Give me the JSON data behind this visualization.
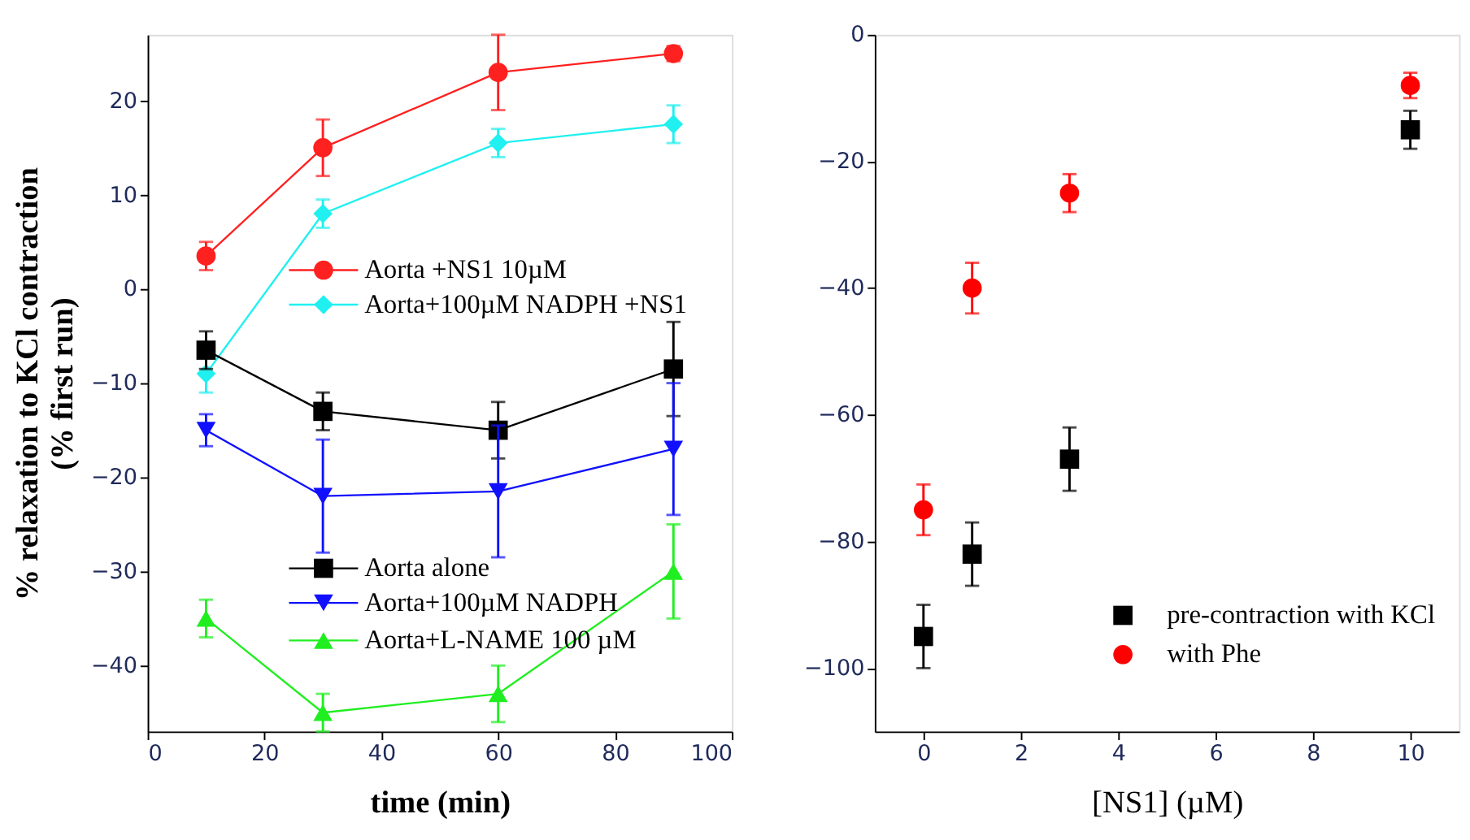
{
  "chart_data": [
    {
      "type": "line",
      "xlabel": "time (min)",
      "ylabel": "% relaxation to KCl contraction\n(% first run)",
      "xlim": [
        0,
        100
      ],
      "ylim": [
        -47,
        27
      ],
      "xticks": [
        0,
        20,
        40,
        60,
        80,
        100
      ],
      "yticks": [
        -40,
        -30,
        -20,
        -10,
        0,
        10,
        20
      ],
      "x": [
        10,
        30,
        60,
        90
      ],
      "legend": "center",
      "series": [
        {
          "name": "Aorta +NS1 10µM",
          "color": "#ff2020",
          "marker": "circle",
          "values": [
            3.5,
            15,
            23,
            25
          ],
          "errors": [
            1.5,
            3,
            4,
            0.8
          ]
        },
        {
          "name": "Aorta+100µM NADPH  +NS1",
          "color": "#20f0f0",
          "marker": "diamond",
          "values": [
            -9,
            8,
            15.5,
            17.5
          ],
          "errors": [
            2,
            1.5,
            1.5,
            2
          ]
        },
        {
          "name": "Aorta alone",
          "color": "#000000",
          "marker": "square",
          "values": [
            -6.5,
            -13,
            -15,
            -8.5
          ],
          "errors": [
            2,
            2,
            3,
            5
          ]
        },
        {
          "name": "Aorta+100µM NADPH",
          "color": "#1010ff",
          "marker": "triangle-down",
          "values": [
            -15,
            -22,
            -21.5,
            -17
          ],
          "errors": [
            1.7,
            6,
            7,
            7
          ]
        },
        {
          "name": "Aorta+L-NAME 100 µM",
          "color": "#20ee20",
          "marker": "triangle",
          "values": [
            -35,
            -45,
            -43,
            -30
          ],
          "errors": [
            2,
            2,
            3,
            5
          ]
        }
      ]
    },
    {
      "type": "scatter",
      "xlabel": "[NS1] (µM)",
      "xlim": [
        -1,
        11
      ],
      "ylim": [
        -110,
        0
      ],
      "xticks": [
        0,
        2,
        4,
        6,
        8,
        10
      ],
      "yticks": [
        -100,
        -80,
        -60,
        -40,
        -20,
        0
      ],
      "x": [
        0,
        1,
        3,
        10
      ],
      "legend": "bottom right",
      "series": [
        {
          "name": "pre-contraction with KCl",
          "color": "#000000",
          "marker": "square",
          "values": [
            -95,
            -82,
            -67,
            -15
          ],
          "errors": [
            5,
            5,
            5,
            3
          ]
        },
        {
          "name": "with Phe",
          "color": "#ff0000",
          "marker": "circle",
          "values": [
            -75,
            -40,
            -25,
            -8
          ],
          "errors": [
            4,
            4,
            3,
            2
          ]
        }
      ]
    }
  ]
}
